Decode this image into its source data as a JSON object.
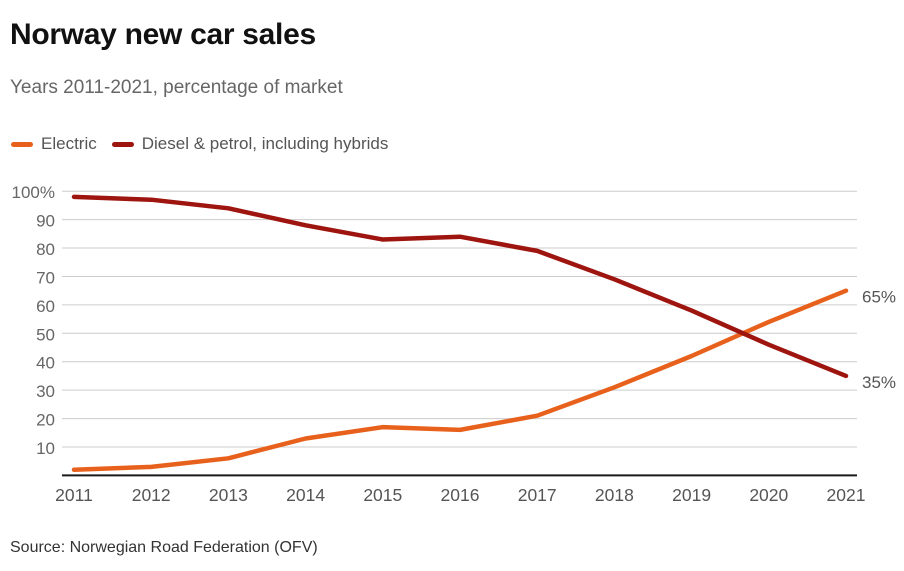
{
  "header": {
    "title": "Norway new car sales",
    "subtitle": "Years 2011-2021, percentage of market"
  },
  "legend": [
    {
      "label": "Electric",
      "color": "#e8611c"
    },
    {
      "label": "Diesel & petrol, including hybrids",
      "color": "#9e1510"
    }
  ],
  "footer": {
    "source": "Source: Norwegian Road Federation (OFV)"
  },
  "chart_data": {
    "type": "line",
    "title": "Norway new car sales",
    "subtitle": "Years 2011-2021, percentage of market",
    "xlabel": "",
    "ylabel": "percentage of market",
    "categories": [
      "2011",
      "2012",
      "2013",
      "2014",
      "2015",
      "2016",
      "2017",
      "2018",
      "2019",
      "2020",
      "2021"
    ],
    "series": [
      {
        "name": "Electric",
        "color": "#e8611c",
        "values": [
          2,
          3,
          6,
          13,
          17,
          16,
          21,
          31,
          42,
          54,
          65
        ],
        "end_label": "65%"
      },
      {
        "name": "Diesel & petrol, including hybrids",
        "color": "#9e1510",
        "values": [
          98,
          97,
          94,
          88,
          83,
          84,
          79,
          69,
          58,
          46,
          35
        ],
        "end_label": "35%"
      }
    ],
    "ylim": [
      0,
      100
    ],
    "yticks": [
      {
        "value": 100,
        "label": "100%"
      },
      {
        "value": 90,
        "label": "90"
      },
      {
        "value": 80,
        "label": "80"
      },
      {
        "value": 70,
        "label": "70"
      },
      {
        "value": 60,
        "label": "60"
      },
      {
        "value": 50,
        "label": "50"
      },
      {
        "value": 40,
        "label": "40"
      },
      {
        "value": 30,
        "label": "30"
      },
      {
        "value": 20,
        "label": "20"
      },
      {
        "value": 10,
        "label": "10"
      }
    ],
    "grid": true,
    "legend_position": "top-left",
    "colors": {
      "grid": "#cccccc",
      "axis": "#1a1a1a",
      "y_tick_label": "#666666",
      "x_tick_label": "#555555",
      "annotation": "#555555"
    }
  }
}
